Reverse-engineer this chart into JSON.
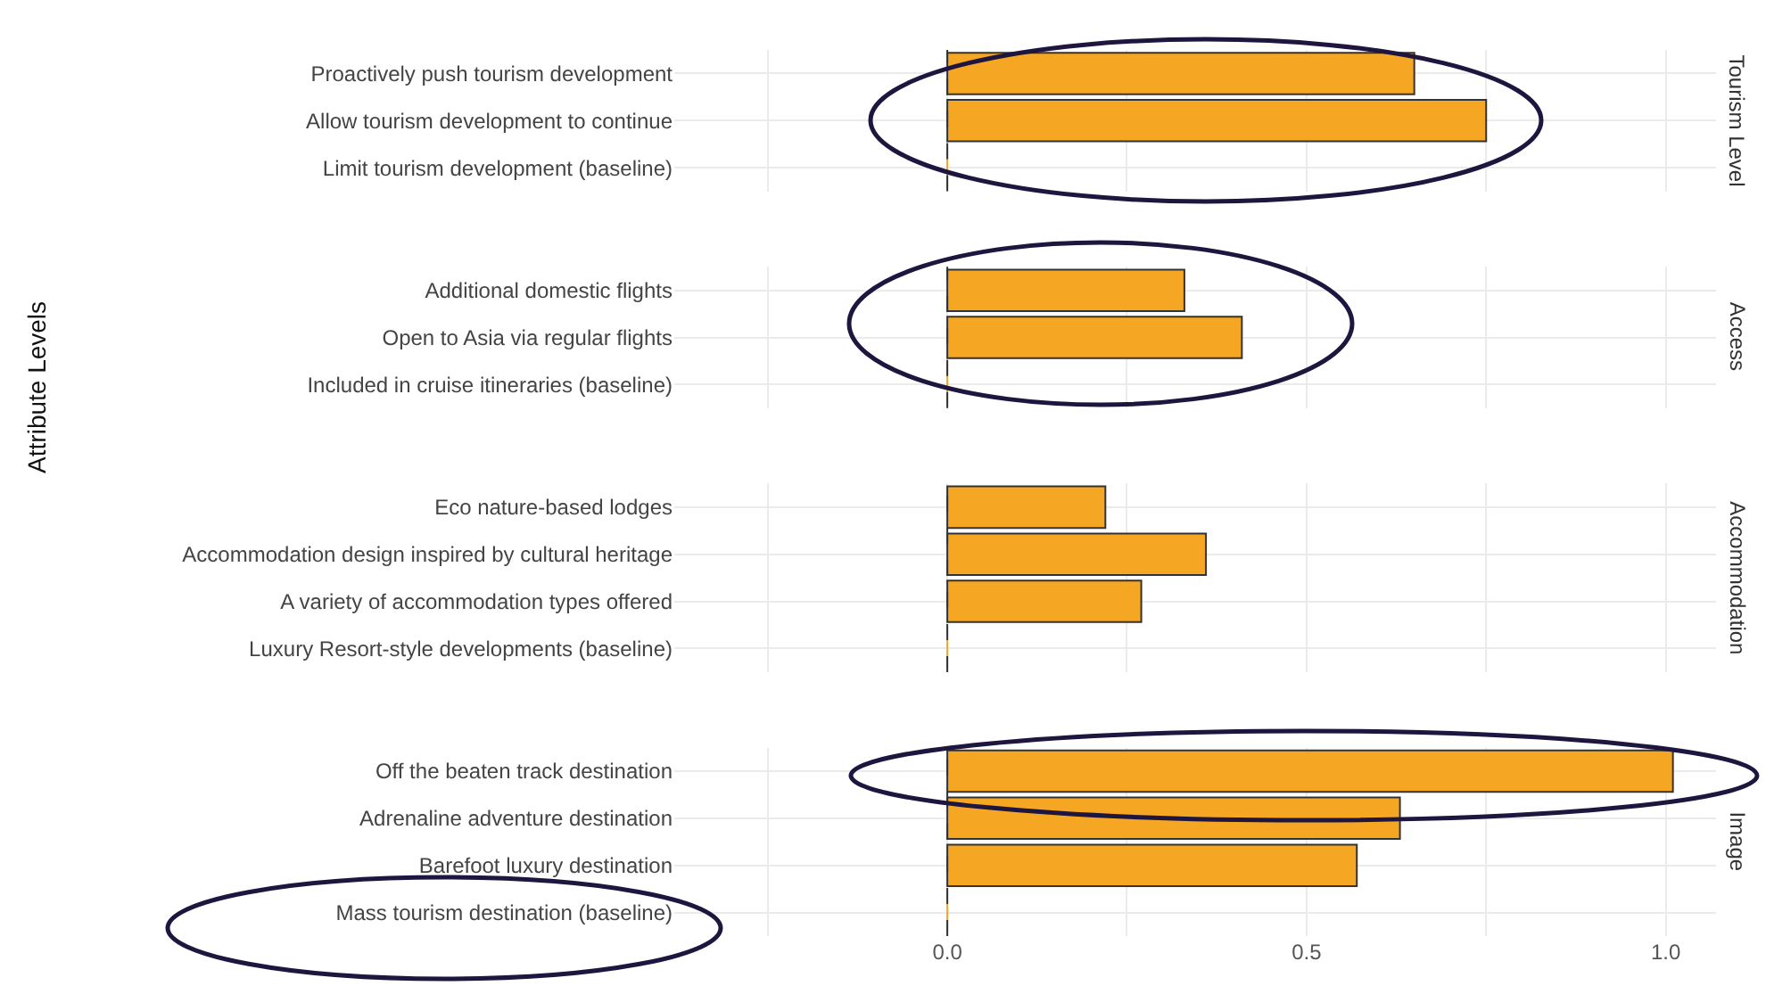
{
  "chart_data": [
    {
      "type": "bar",
      "orientation": "horizontal",
      "title": "Tourism Level",
      "ylabel": "Attribute Levels",
      "categories": [
        "Proactively push tourism development",
        "Allow tourism development to continue",
        "Limit tourism development (baseline)"
      ],
      "values": [
        0.65,
        0.75,
        0
      ],
      "color": "#f5a623",
      "xlim": [
        -0.38,
        1.07
      ],
      "xticks": [
        {
          "value": -0.25,
          "label": null
        },
        {
          "value": 0,
          "label": null
        },
        {
          "value": 0.25,
          "label": null
        },
        {
          "value": 0.5,
          "label": null
        },
        {
          "value": 0.75,
          "label": null
        },
        {
          "value": 1,
          "label": null
        }
      ],
      "grid": true,
      "tick_labels": "y",
      "ref_lines": [
        {
          "axis": "x",
          "value": 0,
          "label": null,
          "color": "#333333",
          "line_style": "dashed"
        }
      ]
    },
    {
      "type": "bar",
      "orientation": "horizontal",
      "title": "Access",
      "categories": [
        "Additional domestic flights",
        "Open to Asia via regular flights",
        "Included in cruise itineraries (baseline)"
      ],
      "values": [
        0.33,
        0.41,
        0
      ],
      "color": "#f5a623",
      "xlim": [
        -0.38,
        1.07
      ],
      "xticks": [
        {
          "value": -0.25,
          "label": null
        },
        {
          "value": 0,
          "label": null
        },
        {
          "value": 0.25,
          "label": null
        },
        {
          "value": 0.5,
          "label": null
        },
        {
          "value": 0.75,
          "label": null
        },
        {
          "value": 1,
          "label": null
        }
      ],
      "grid": true,
      "tick_labels": "y",
      "ref_lines": [
        {
          "axis": "x",
          "value": 0,
          "label": null,
          "color": "#333333",
          "line_style": "dashed"
        }
      ]
    },
    {
      "type": "bar",
      "orientation": "horizontal",
      "title": "Accommodation",
      "categories": [
        "Eco nature-based lodges",
        "Accommodation design inspired by cultural heritage",
        "A variety of accommodation types offered",
        "Luxury Resort-style developments (baseline)"
      ],
      "values": [
        0.22,
        0.36,
        0.27,
        0
      ],
      "color": "#f5a623",
      "xlim": [
        -0.38,
        1.07
      ],
      "xticks": [
        {
          "value": -0.25,
          "label": null
        },
        {
          "value": 0,
          "label": null
        },
        {
          "value": 0.25,
          "label": null
        },
        {
          "value": 0.5,
          "label": null
        },
        {
          "value": 0.75,
          "label": null
        },
        {
          "value": 1,
          "label": null
        }
      ],
      "grid": true,
      "tick_labels": "y",
      "ref_lines": [
        {
          "axis": "x",
          "value": 0,
          "label": null,
          "color": "#333333",
          "line_style": "dashed"
        }
      ]
    },
    {
      "type": "bar",
      "orientation": "horizontal",
      "title": "Image",
      "categories": [
        "Off the beaten track destination",
        "Adrenaline adventure destination",
        "Barefoot luxury destination",
        "Mass tourism destination (baseline)"
      ],
      "values": [
        1.01,
        0.63,
        0.57,
        0
      ],
      "color": "#f5a623",
      "xlim": [
        -0.38,
        1.07
      ],
      "xticks": [
        {
          "value": -0.25,
          "label": null
        },
        {
          "value": 0,
          "label": "0.0"
        },
        {
          "value": 0.25,
          "label": null
        },
        {
          "value": 0.5,
          "label": "0.5"
        },
        {
          "value": 0.75,
          "label": null
        },
        {
          "value": 1,
          "label": "1.0"
        }
      ],
      "grid": true,
      "ref_lines": [
        {
          "axis": "x",
          "value": 0,
          "label": null,
          "color": "#333333",
          "line_style": "dashed"
        }
      ]
    }
  ]
}
